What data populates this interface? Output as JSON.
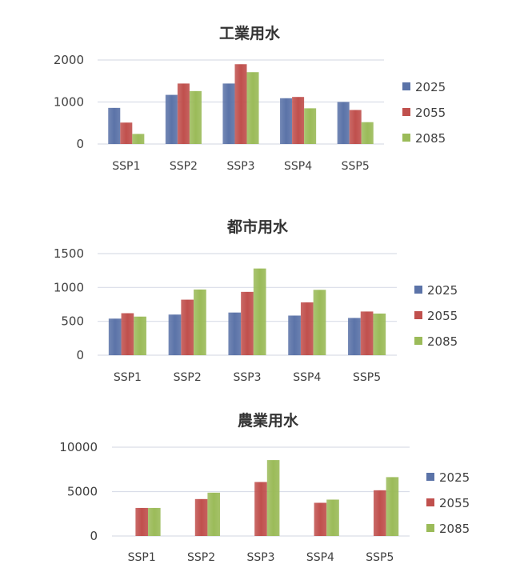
{
  "chart_data": [
    {
      "type": "bar",
      "title": "工業用水",
      "categories": [
        "SSP1",
        "SSP2",
        "SSP3",
        "SSP4",
        "SSP5"
      ],
      "ylim": [
        0,
        2000
      ],
      "yticks": [
        "0",
        "1000",
        "2000"
      ],
      "legend_position": "right",
      "grid": true,
      "series": [
        {
          "name": "2025",
          "color": "#5b73a8",
          "values": [
            860,
            1170,
            1440,
            1090,
            1000
          ]
        },
        {
          "name": "2055",
          "color": "#c0504d",
          "values": [
            510,
            1440,
            1900,
            1120,
            810
          ]
        },
        {
          "name": "2085",
          "color": "#9bbb59",
          "values": [
            240,
            1260,
            1710,
            850,
            520
          ]
        }
      ]
    },
    {
      "type": "bar",
      "title": "都市用水",
      "categories": [
        "SSP1",
        "SSP2",
        "SSP3",
        "SSP4",
        "SSP5"
      ],
      "ylim": [
        0,
        1500
      ],
      "yticks": [
        "0",
        "500",
        "1000",
        "1500"
      ],
      "legend_position": "right",
      "grid": true,
      "series": [
        {
          "name": "2025",
          "color": "#5b73a8",
          "values": [
            540,
            600,
            630,
            585,
            550
          ]
        },
        {
          "name": "2055",
          "color": "#c0504d",
          "values": [
            620,
            820,
            935,
            780,
            645
          ]
        },
        {
          "name": "2085",
          "color": "#9bbb59",
          "values": [
            570,
            970,
            1280,
            965,
            615
          ]
        }
      ]
    },
    {
      "type": "bar",
      "title": "農業用水",
      "categories": [
        "SSP1",
        "SSP2",
        "SSP3",
        "SSP4",
        "SSP5"
      ],
      "ylim": [
        0,
        10000
      ],
      "yticks": [
        "0",
        "5000",
        "10000"
      ],
      "legend_position": "right",
      "grid": true,
      "series": [
        {
          "name": "2025",
          "color": "#5b73a8",
          "values": [
            0,
            0,
            0,
            0,
            0
          ]
        },
        {
          "name": "2055",
          "color": "#c0504d",
          "values": [
            3160,
            4160,
            6080,
            3740,
            5150
          ]
        },
        {
          "name": "2085",
          "color": "#9bbb59",
          "values": [
            3160,
            4880,
            8550,
            4100,
            6630
          ]
        }
      ]
    }
  ]
}
